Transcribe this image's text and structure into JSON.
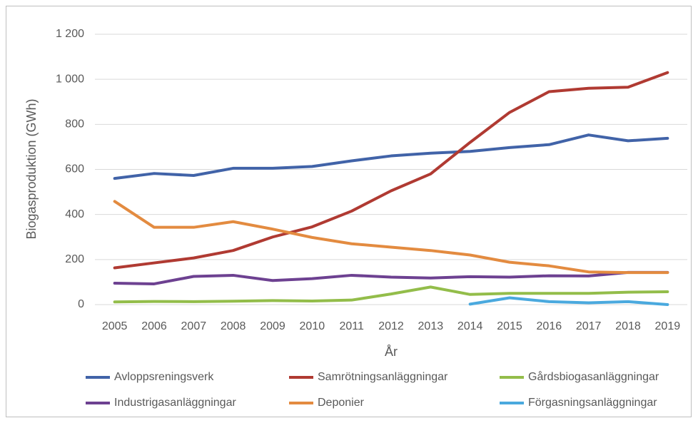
{
  "chart_data": {
    "type": "line",
    "x_label": "År",
    "y_label": "Biogasproduktion (GWh)",
    "categories": [
      "2005",
      "2006",
      "2007",
      "2008",
      "2009",
      "2010",
      "2011",
      "2012",
      "2013",
      "2014",
      "2015",
      "2016",
      "2017",
      "2018",
      "2019"
    ],
    "series": [
      {
        "name": "Avloppsreningsverk",
        "color": "#4163a8",
        "values": [
          560,
          582,
          573,
          605,
          605,
          613,
          638,
          660,
          672,
          680,
          697,
          710,
          753,
          727,
          738
        ]
      },
      {
        "name": "Samrötningsanläggningar",
        "color": "#b03a32",
        "values": [
          163,
          185,
          207,
          240,
          300,
          345,
          415,
          505,
          580,
          720,
          853,
          945,
          960,
          965,
          1030
        ]
      },
      {
        "name": "Gårdsbiogasanläggningar",
        "color": "#93bd4a",
        "values": [
          12,
          14,
          13,
          15,
          18,
          16,
          20,
          47,
          78,
          45,
          50,
          50,
          50,
          55,
          57
        ]
      },
      {
        "name": "Industrigasanläggningar",
        "color": "#6d4191",
        "values": [
          95,
          92,
          125,
          130,
          107,
          115,
          130,
          122,
          118,
          124,
          122,
          128,
          127,
          143,
          143
        ]
      },
      {
        "name": "Deponier",
        "color": "#e38b40",
        "values": [
          458,
          343,
          343,
          368,
          335,
          298,
          270,
          255,
          240,
          220,
          188,
          172,
          145,
          142,
          142
        ]
      },
      {
        "name": "Förgasningsanläggningar",
        "color": "#4aa9de",
        "values": [
          null,
          null,
          null,
          null,
          null,
          null,
          null,
          null,
          null,
          2,
          30,
          13,
          8,
          13,
          0
        ]
      }
    ],
    "ylim": [
      0,
      1200
    ],
    "yticks": [
      0,
      200,
      400,
      600,
      800,
      {
        "value": 1000,
        "label": "1 000"
      },
      {
        "value": 1200,
        "label": "1 200"
      }
    ],
    "grid": true
  }
}
